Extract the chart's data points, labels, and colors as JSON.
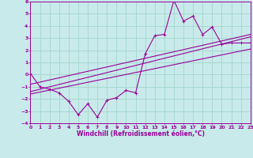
{
  "xlabel": "Windchill (Refroidissement éolien,°C)",
  "bg_color": "#c8eaea",
  "grid_color": "#a8d8d0",
  "line_color": "#990099",
  "xlim": [
    0,
    23
  ],
  "ylim": [
    -4,
    6
  ],
  "xticks": [
    0,
    1,
    2,
    3,
    4,
    5,
    6,
    7,
    8,
    9,
    10,
    11,
    12,
    13,
    14,
    15,
    16,
    17,
    18,
    19,
    20,
    21,
    22,
    23
  ],
  "yticks": [
    -4,
    -3,
    -2,
    -1,
    0,
    1,
    2,
    3,
    4,
    5,
    6
  ],
  "scatter_x": [
    0,
    1,
    2,
    3,
    4,
    5,
    6,
    7,
    8,
    9,
    10,
    11,
    12,
    13,
    14,
    15,
    16,
    17,
    18,
    19,
    20,
    21,
    22,
    23
  ],
  "scatter_y": [
    0.1,
    -1.0,
    -1.2,
    -1.5,
    -2.2,
    -3.3,
    -2.4,
    -3.5,
    -2.1,
    -1.9,
    -1.3,
    -1.5,
    1.7,
    3.2,
    3.3,
    6.1,
    4.4,
    4.8,
    3.3,
    3.9,
    2.5,
    2.6,
    2.6,
    2.6
  ],
  "line1_x": [
    0,
    23
  ],
  "line1_y": [
    -1.4,
    3.1
  ],
  "line2_x": [
    0,
    23
  ],
  "line2_y": [
    -0.8,
    3.3
  ],
  "line3_x": [
    0,
    23
  ],
  "line3_y": [
    -1.6,
    2.1
  ]
}
